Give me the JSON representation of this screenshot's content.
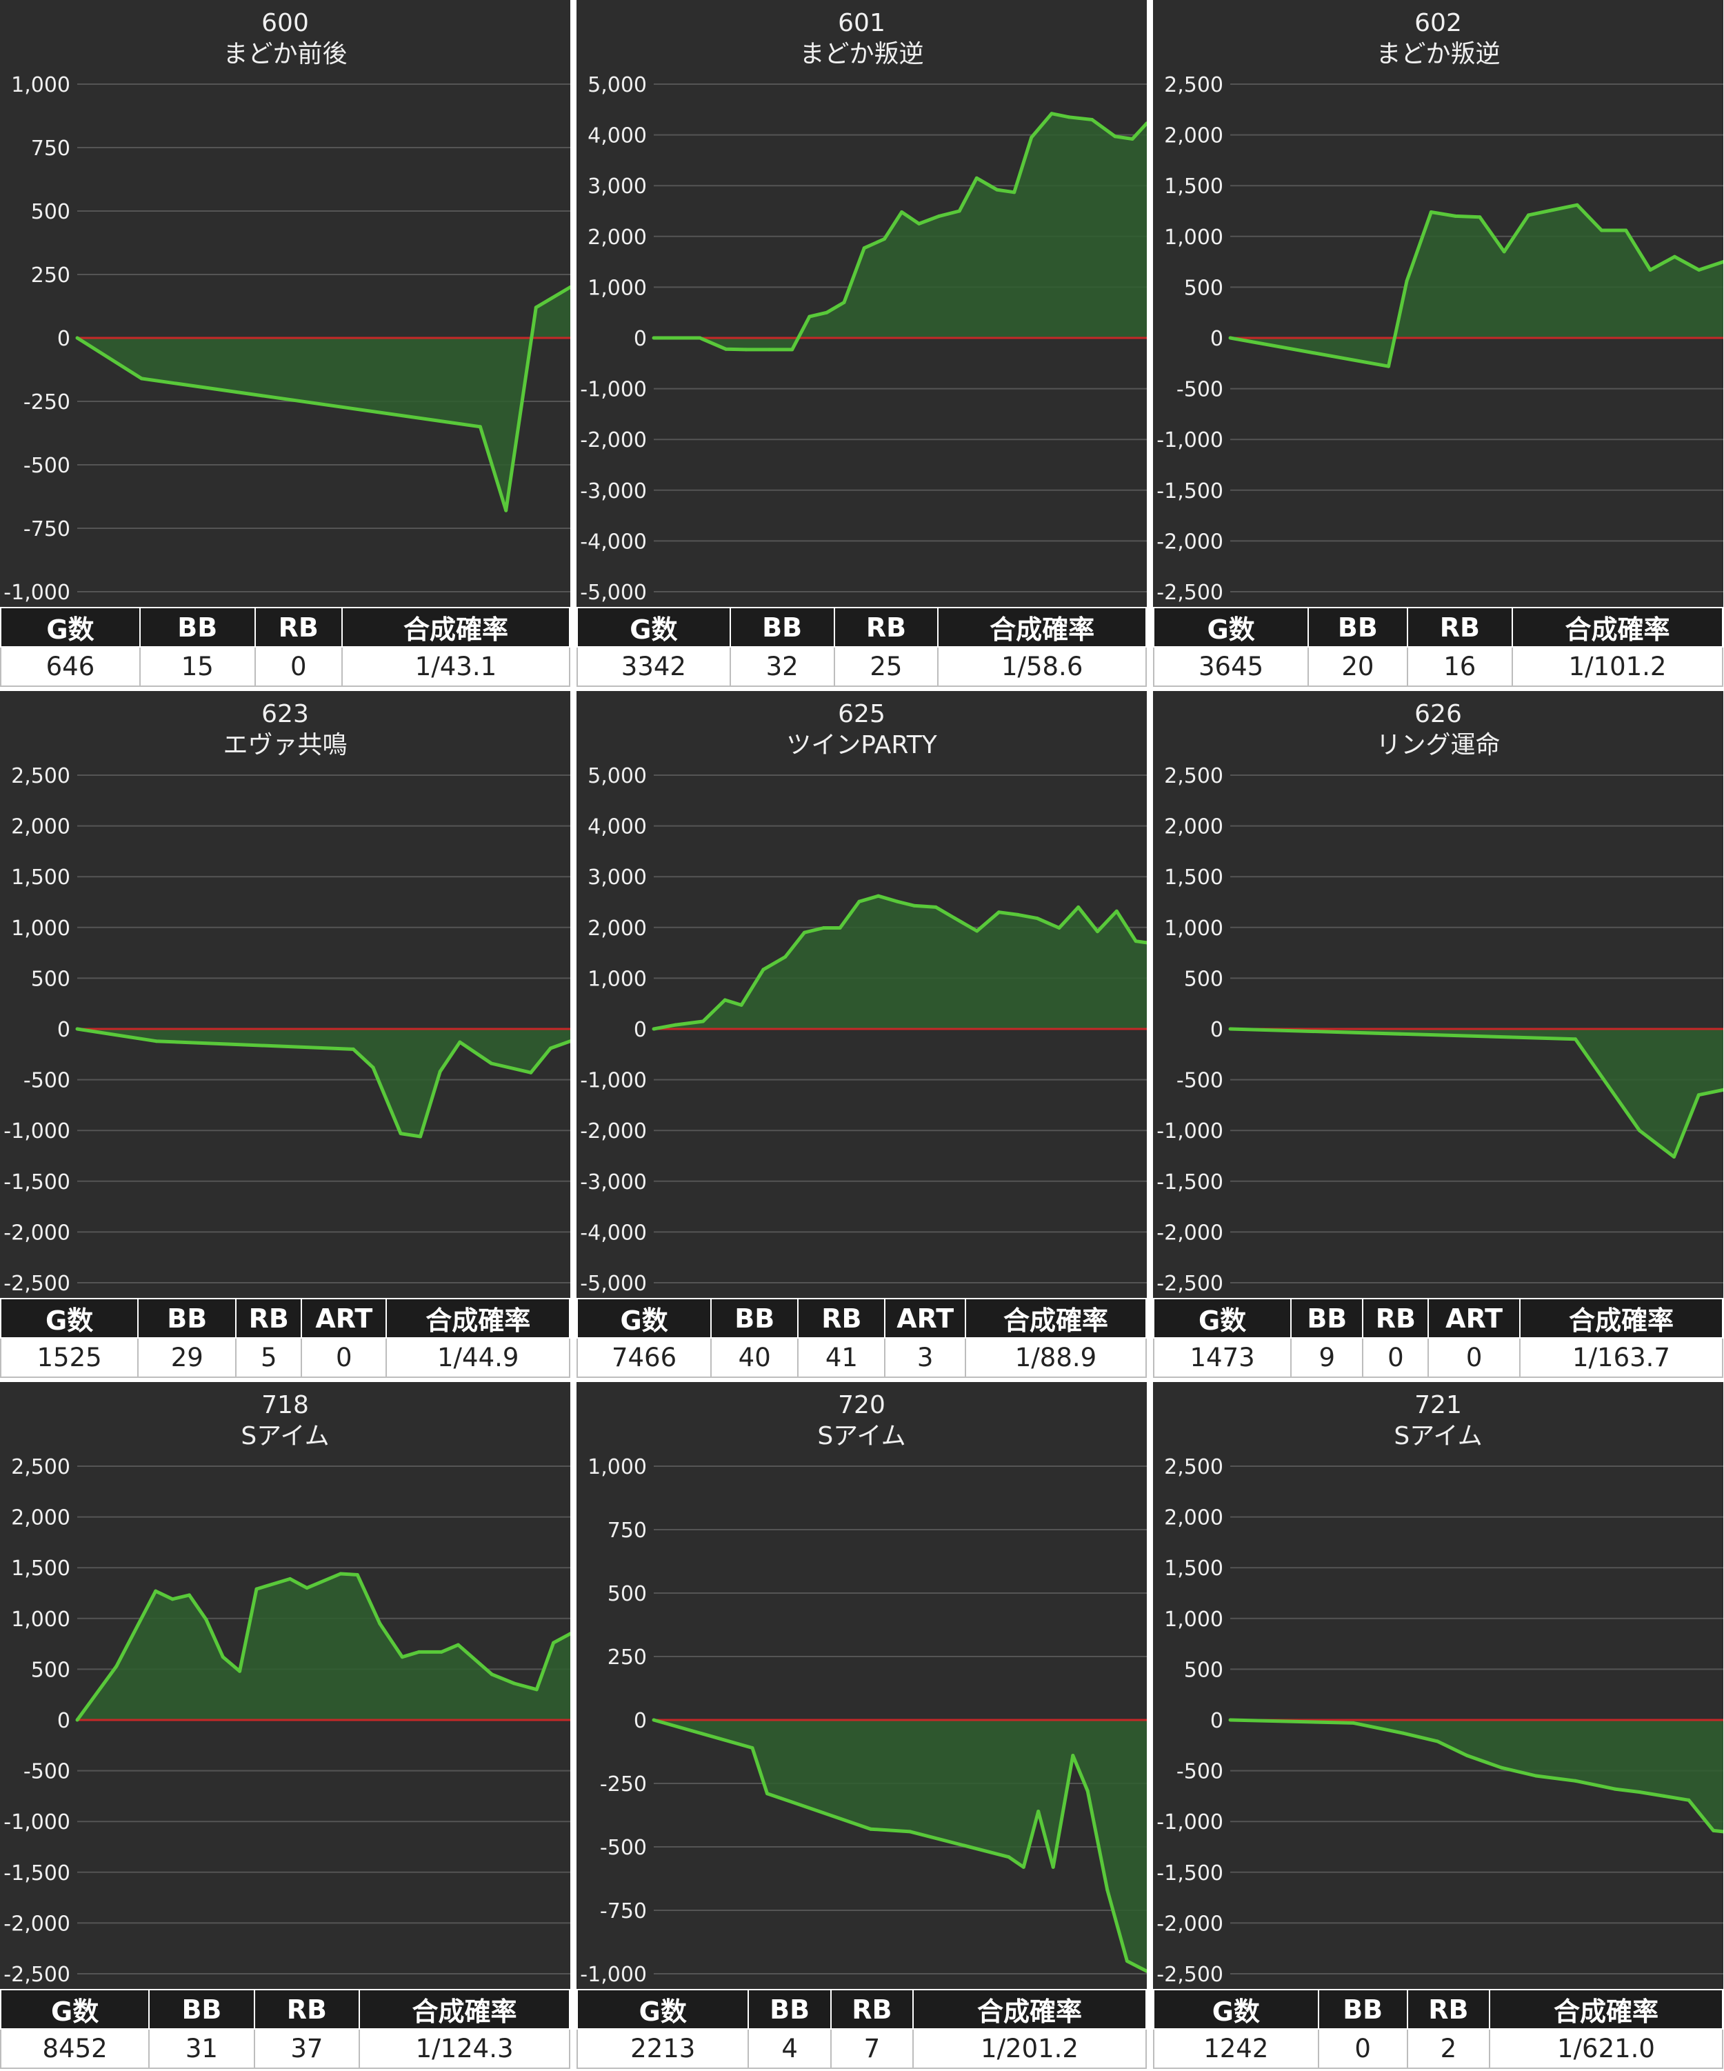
{
  "colors": {
    "panel_bg": "#2d2d2d",
    "grid": "#555555",
    "zero_line": "#c62828",
    "line": "#59c93a",
    "fill": "#2f5f2f",
    "text": "#f0f0f0"
  },
  "panels": [
    {
      "title_line1": "600",
      "title_line2": "まどか前後",
      "stats": {
        "headers": [
          "G数",
          "BB",
          "RB",
          "合成確率"
        ],
        "values": [
          "646",
          "15",
          "0",
          "1/43.1"
        ],
        "col_widths": [
          1.15,
          0.95,
          0.72,
          1.88
        ]
      }
    },
    {
      "title_line1": "601",
      "title_line2": "まどか叛逆",
      "stats": {
        "headers": [
          "G数",
          "BB",
          "RB",
          "合成確率"
        ],
        "values": [
          "3342",
          "32",
          "25",
          "1/58.6"
        ],
        "col_widths": [
          1.25,
          0.85,
          0.85,
          1.7
        ]
      }
    },
    {
      "title_line1": "602",
      "title_line2": "まどか叛逆",
      "stats": {
        "headers": [
          "G数",
          "BB",
          "RB",
          "合成確率"
        ],
        "values": [
          "3645",
          "20",
          "16",
          "1/101.2"
        ],
        "col_widths": [
          1.25,
          0.8,
          0.85,
          1.7
        ]
      }
    },
    {
      "title_line1": "623",
      "title_line2": "エヴァ共鳴",
      "stats": {
        "headers": [
          "G数",
          "BB",
          "RB",
          "ART",
          "合成確率"
        ],
        "values": [
          "1525",
          "29",
          "5",
          "0",
          "1/44.9"
        ],
        "col_widths": [
          1.05,
          0.75,
          0.5,
          0.65,
          1.4
        ]
      }
    },
    {
      "title_line1": "625",
      "title_line2": "ツインPARTY",
      "stats": {
        "headers": [
          "G数",
          "BB",
          "RB",
          "ART",
          "合成確率"
        ],
        "values": [
          "7466",
          "40",
          "41",
          "3",
          "1/88.9"
        ],
        "col_widths": [
          1.0,
          0.65,
          0.65,
          0.6,
          1.35
        ]
      }
    },
    {
      "title_line1": "626",
      "title_line2": "リング運命",
      "stats": {
        "headers": [
          "G数",
          "BB",
          "RB",
          "ART",
          "合成確率"
        ],
        "values": [
          "1473",
          "9",
          "0",
          "0",
          "1/163.7"
        ],
        "col_widths": [
          1.05,
          0.55,
          0.5,
          0.7,
          1.55
        ]
      }
    },
    {
      "title_line1": "718",
      "title_line2": "Sアイム",
      "stats": {
        "headers": [
          "G数",
          "BB",
          "RB",
          "合成確率"
        ],
        "values": [
          "8452",
          "31",
          "37",
          "1/124.3"
        ],
        "col_widths": [
          1.2,
          0.85,
          0.85,
          1.7
        ]
      }
    },
    {
      "title_line1": "720",
      "title_line2": "Sアイム",
      "stats": {
        "headers": [
          "G数",
          "BB",
          "RB",
          "合成確率"
        ],
        "values": [
          "2213",
          "4",
          "7",
          "1/201.2"
        ],
        "col_widths": [
          1.25,
          0.6,
          0.6,
          1.7
        ]
      }
    },
    {
      "title_line1": "721",
      "title_line2": "Sアイム",
      "stats": {
        "headers": [
          "G数",
          "BB",
          "RB",
          "合成確率"
        ],
        "values": [
          "1242",
          "0",
          "2",
          "1/621.0"
        ],
        "col_widths": [
          1.2,
          0.65,
          0.6,
          1.7
        ]
      }
    }
  ],
  "chart_data": [
    {
      "type": "area",
      "title": "600 まどか前後",
      "ylim": [
        -1000,
        1000
      ],
      "yticks": [
        1000,
        750,
        500,
        250,
        0,
        -250,
        -500,
        -750,
        -1000
      ],
      "ytick_labels": [
        "1,000",
        "750",
        "500",
        "250",
        "0",
        "-250",
        "-500",
        "-750",
        "-1,000"
      ],
      "grid": true,
      "series": [
        {
          "values": [
            0,
            -160,
            -350,
            -680,
            120,
            200
          ],
          "x": [
            0,
            0.15,
            0.94,
            1.0,
            1.07,
            1.15
          ]
        }
      ]
    },
    {
      "type": "area",
      "title": "601 まどか叛逆",
      "ylim": [
        -5000,
        5000
      ],
      "yticks": [
        5000,
        4000,
        3000,
        2000,
        1000,
        0,
        -1000,
        -2000,
        -3000,
        -4000,
        -5000
      ],
      "ytick_labels": [
        "5,000",
        "4,000",
        "3,000",
        "2,000",
        "1,000",
        "0",
        "-1,000",
        "-2,000",
        "-3,000",
        "-4,000",
        "-5,000"
      ],
      "grid": true,
      "series": [
        {
          "values": [
            0,
            0,
            0,
            -220,
            -230,
            -230,
            -230,
            420,
            500,
            700,
            1770,
            1950,
            2480,
            2250,
            2400,
            2500,
            3150,
            2920,
            2870,
            3950,
            4420,
            4350,
            4300,
            3970,
            3920,
            4230
          ],
          "x": [
            0,
            0.2,
            0.8,
            1.25,
            1.6,
            2.0,
            2.4,
            2.7,
            3.0,
            3.3,
            3.65,
            4.0,
            4.3,
            4.6,
            4.95,
            5.3,
            5.6,
            5.95,
            6.25,
            6.55,
            6.9,
            7.2,
            7.6,
            8.0,
            8.3,
            8.55
          ]
        }
      ]
    },
    {
      "type": "area",
      "title": "602 まどか叛逆",
      "ylim": [
        -2500,
        2500
      ],
      "yticks": [
        2500,
        2000,
        1500,
        1000,
        500,
        0,
        -500,
        -1000,
        -1500,
        -2000,
        -2500
      ],
      "ytick_labels": [
        "2,500",
        "2,000",
        "1,500",
        "1,000",
        "500",
        "0",
        "-500",
        "-1,000",
        "-1,500",
        "-2,000",
        "-2,500"
      ],
      "grid": true,
      "series": [
        {
          "values": [
            0,
            -280,
            560,
            1240,
            1200,
            1190,
            850,
            1210,
            1260,
            1310,
            1060,
            1060,
            670,
            800,
            670,
            750
          ],
          "x": [
            0,
            1.3,
            1.45,
            1.65,
            1.85,
            2.05,
            2.25,
            2.45,
            2.65,
            2.85,
            3.05,
            3.25,
            3.45,
            3.65,
            3.85,
            4.05
          ]
        }
      ]
    },
    {
      "type": "area",
      "title": "623 エヴァ共鳴",
      "ylim": [
        -2500,
        2500
      ],
      "yticks": [
        2500,
        2000,
        1500,
        1000,
        500,
        0,
        -500,
        -1000,
        -1500,
        -2000,
        -2500
      ],
      "ytick_labels": [
        "2,500",
        "2,000",
        "1,500",
        "1,000",
        "500",
        "0",
        "-500",
        "-1,000",
        "-1,500",
        "-2,000",
        "-2,500"
      ],
      "grid": true,
      "series": [
        {
          "values": [
            0,
            -120,
            -200,
            -380,
            -1030,
            -1060,
            -420,
            -130,
            -340,
            -430,
            -190,
            -120
          ],
          "x": [
            0,
            0.2,
            0.7,
            0.75,
            0.82,
            0.87,
            0.92,
            0.97,
            1.05,
            1.15,
            1.2,
            1.25
          ]
        }
      ]
    },
    {
      "type": "area",
      "title": "625 ツインPARTY",
      "ylim": [
        -5000,
        5000
      ],
      "yticks": [
        5000,
        4000,
        3000,
        2000,
        1000,
        0,
        -1000,
        -2000,
        -3000,
        -4000,
        -5000
      ],
      "ytick_labels": [
        "5,000",
        "4,000",
        "3,000",
        "2,000",
        "1,000",
        "0",
        "-1,000",
        "-2,000",
        "-3,000",
        "-4,000",
        "-5,000"
      ],
      "grid": true,
      "series": [
        {
          "values": [
            0,
            80,
            150,
            570,
            470,
            1170,
            1420,
            1900,
            1990,
            1990,
            2510,
            2620,
            2510,
            2430,
            2400,
            2180,
            1930,
            2300,
            2250,
            2180,
            1990,
            2400,
            1920,
            2320,
            1730,
            1700
          ],
          "x": [
            0,
            0.4,
            0.9,
            1.3,
            1.6,
            2.0,
            2.4,
            2.75,
            3.1,
            3.4,
            3.75,
            4.1,
            4.45,
            4.75,
            5.15,
            5.5,
            5.9,
            6.3,
            6.65,
            7.0,
            7.4,
            7.75,
            8.1,
            8.45,
            8.8,
            9.0
          ]
        }
      ]
    },
    {
      "type": "area",
      "title": "626 リング運命",
      "ylim": [
        -2500,
        2500
      ],
      "yticks": [
        2500,
        2000,
        1500,
        1000,
        500,
        0,
        -500,
        -1000,
        -1500,
        -2000,
        -2500
      ],
      "ytick_labels": [
        "2,500",
        "2,000",
        "1,500",
        "1,000",
        "500",
        "0",
        "-500",
        "-1,000",
        "-1,500",
        "-2,000",
        "-2,500"
      ],
      "grid": true,
      "series": [
        {
          "values": [
            0,
            -100,
            -1000,
            -1260,
            -650,
            -600
          ],
          "x": [
            0,
            0.7,
            0.83,
            0.9,
            0.95,
            1.0
          ]
        }
      ]
    },
    {
      "type": "area",
      "title": "718 Sアイム",
      "ylim": [
        -2500,
        2500
      ],
      "yticks": [
        2500,
        2000,
        1500,
        1000,
        500,
        0,
        -500,
        -1000,
        -1500,
        -2000,
        -2500
      ],
      "ytick_labels": [
        "2,500",
        "2,000",
        "1,500",
        "1,000",
        "500",
        "0",
        "-500",
        "-1,000",
        "-1,500",
        "-2,000",
        "-2,500"
      ],
      "grid": true,
      "series": [
        {
          "values": [
            0,
            530,
            1270,
            1190,
            1230,
            990,
            620,
            480,
            1290,
            1390,
            1300,
            1440,
            1430,
            950,
            620,
            670,
            670,
            740,
            450,
            360,
            300,
            760,
            850
          ],
          "x": [
            0,
            0.35,
            0.7,
            0.85,
            1.0,
            1.15,
            1.3,
            1.45,
            1.6,
            1.9,
            2.05,
            2.35,
            2.5,
            2.7,
            2.9,
            3.05,
            3.25,
            3.4,
            3.7,
            3.9,
            4.1,
            4.25,
            4.4
          ]
        }
      ]
    },
    {
      "type": "area",
      "title": "720 Sアイム",
      "ylim": [
        -1000,
        1000
      ],
      "yticks": [
        1000,
        750,
        500,
        250,
        0,
        -250,
        -500,
        -750,
        -1000
      ],
      "ytick_labels": [
        "1,000",
        "750",
        "500",
        "250",
        "0",
        "-250",
        "-500",
        "-750",
        "-1,000"
      ],
      "grid": true,
      "series": [
        {
          "values": [
            0,
            -110,
            -290,
            -430,
            -440,
            -540,
            -580,
            -360,
            -580,
            -140,
            -280,
            -670,
            -950,
            -990
          ],
          "x": [
            0,
            0.2,
            0.23,
            0.44,
            0.52,
            0.72,
            0.75,
            0.78,
            0.81,
            0.85,
            0.88,
            0.92,
            0.96,
            1.0
          ]
        }
      ]
    },
    {
      "type": "area",
      "title": "721 Sアイム",
      "ylim": [
        -2500,
        2500
      ],
      "yticks": [
        2500,
        2000,
        1500,
        1000,
        500,
        0,
        -500,
        -1000,
        -1500,
        -2000,
        -2500
      ],
      "ytick_labels": [
        "2,500",
        "2,000",
        "1,500",
        "1,000",
        "500",
        "0",
        "-500",
        "-1,000",
        "-1,500",
        "-2,000",
        "-2,500"
      ],
      "grid": true,
      "series": [
        {
          "values": [
            0,
            -30,
            -130,
            -210,
            -350,
            -470,
            -550,
            -600,
            -680,
            -710,
            -750,
            -790,
            -1090,
            -1100
          ],
          "x": [
            0,
            0.25,
            0.35,
            0.42,
            0.48,
            0.55,
            0.62,
            0.7,
            0.78,
            0.83,
            0.88,
            0.93,
            0.98,
            1.0
          ]
        }
      ]
    }
  ]
}
